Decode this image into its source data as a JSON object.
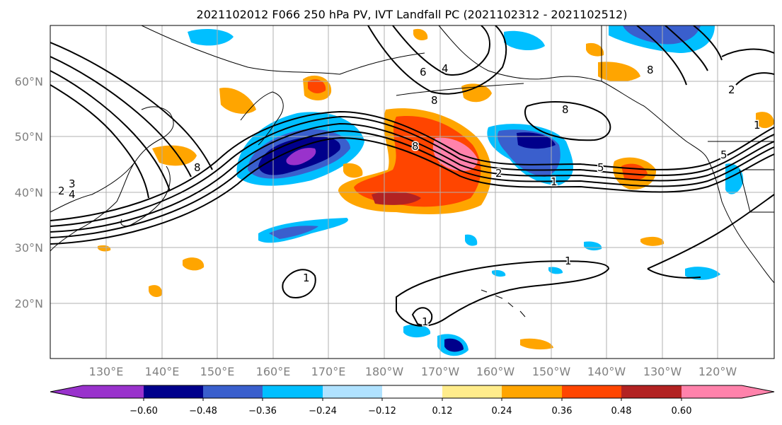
{
  "title": "2021102012 F066 250 hPa PV, IVT Landfall PC (2021102312 - 2021102512)",
  "map": {
    "lon_labels": [
      "130°E",
      "140°E",
      "150°E",
      "160°E",
      "170°E",
      "180°W",
      "170°W",
      "160°W",
      "150°W",
      "140°W",
      "130°W",
      "120°W"
    ],
    "lat_labels": [
      "60°N",
      "50°N",
      "40°N",
      "30°N",
      "20°N"
    ],
    "contour_labels": [
      "3",
      "2",
      "4",
      "8",
      "6",
      "4",
      "8",
      "8",
      "8",
      "2",
      "5",
      "1",
      "1",
      "1",
      "1",
      "8",
      "2",
      "5",
      "1"
    ]
  },
  "colorbar": {
    "ticks": [
      "−0.60",
      "−0.48",
      "−0.36",
      "−0.24",
      "−0.12",
      "0.12",
      "0.24",
      "0.36",
      "0.48",
      "0.60"
    ],
    "colors": [
      "#9932cc",
      "#00008b",
      "#3a5fcd",
      "#00bfff",
      "#b0e2ff",
      "#ffffff",
      "#ffec8b",
      "#ffa500",
      "#ff4500",
      "#b22222",
      "#ff82ab"
    ]
  }
}
